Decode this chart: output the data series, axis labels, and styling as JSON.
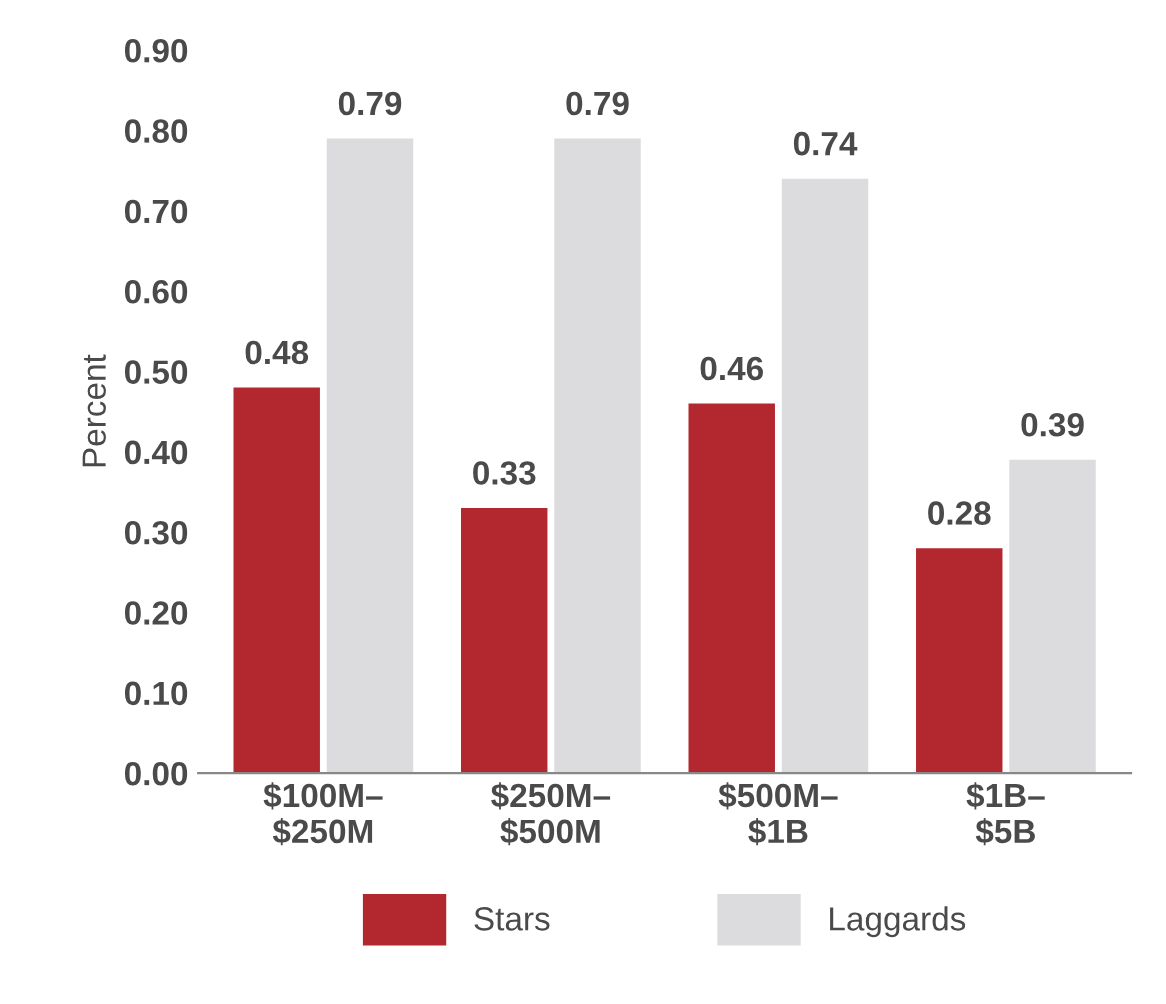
{
  "chart_data": {
    "type": "bar",
    "ylabel": "Percent",
    "categories": [
      "$100M–\n$250M",
      "$250M–\n$500M",
      "$500M–\n$1B",
      "$1B–\n$5B"
    ],
    "series": [
      {
        "name": "Stars",
        "color": "#b3282e",
        "values": [
          0.48,
          0.33,
          0.46,
          0.28
        ]
      },
      {
        "name": "Laggards",
        "color": "#dcdcde",
        "values": [
          0.79,
          0.79,
          0.74,
          0.39
        ]
      }
    ],
    "ylim": [
      0,
      0.9
    ],
    "yticks": [
      {
        "value": 0,
        "label": "0.00"
      },
      {
        "value": 0.1,
        "label": "0.10"
      },
      {
        "value": 0.2,
        "label": "0.20"
      },
      {
        "value": 0.3,
        "label": "0.30"
      },
      {
        "value": 0.4,
        "label": "0.40"
      },
      {
        "value": 0.5,
        "label": "0.50"
      },
      {
        "value": 0.6,
        "label": "0.60"
      },
      {
        "value": 0.7,
        "label": "0.70"
      },
      {
        "value": 0.8,
        "label": "0.80"
      },
      {
        "value": 0.9,
        "label": "0.90"
      }
    ],
    "data_labels": true,
    "legend": "bottom",
    "grid": false
  }
}
